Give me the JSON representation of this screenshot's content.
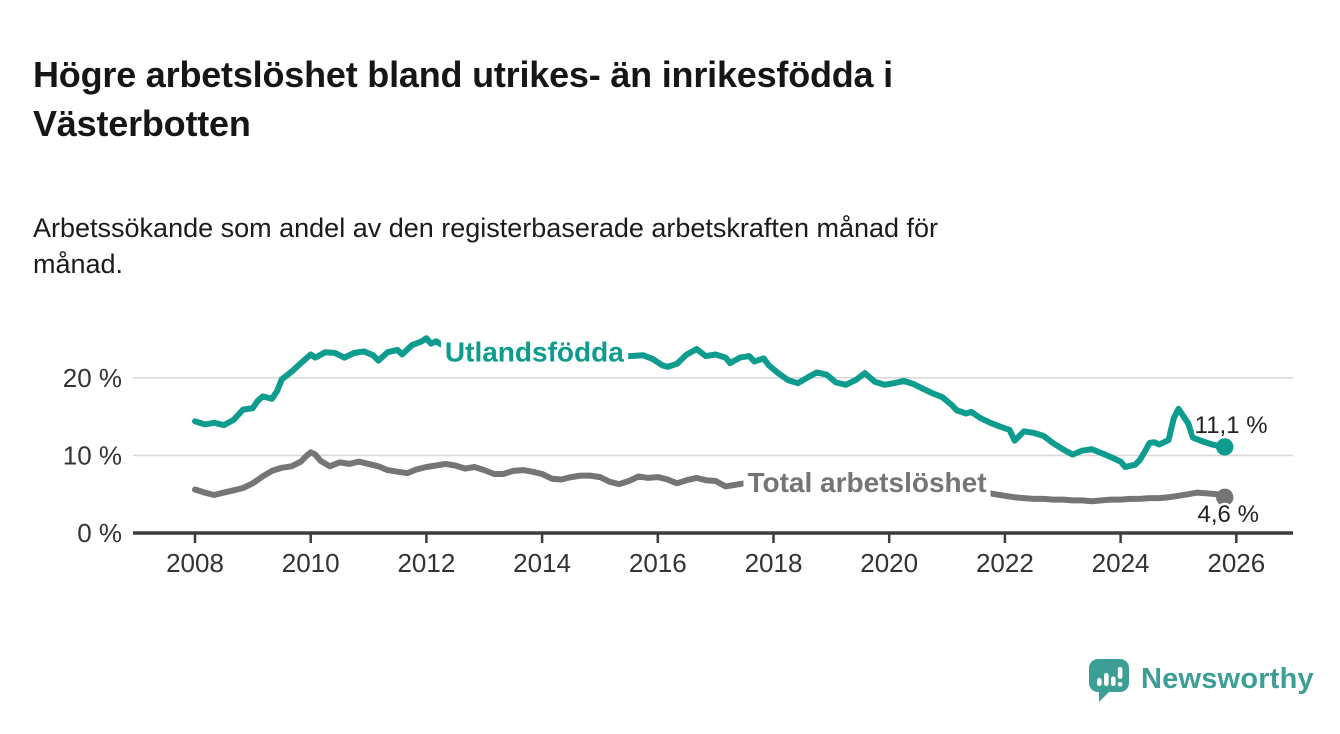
{
  "title": {
    "text": "Högre arbetslöshet bland utrikes- än inrikesfödda i Västerbotten",
    "lines": [
      "Högre arbetslöshet bland utrikes- än inrikesfödda i",
      "Västerbotten"
    ]
  },
  "subtitle": {
    "text": "Arbetssökande som andel av den registerbaserade arbetskraften månad för månad.",
    "lines": [
      "Arbetssökande som andel av den registerbaserade arbetskraften månad för",
      "månad."
    ]
  },
  "branding": {
    "logo_text": "Newsworthy",
    "logo_color": "#3D9E96"
  },
  "chart_data": {
    "type": "line",
    "title": "Högre arbetslöshet bland utrikes- än inrikesfödda i Västerbotten",
    "xlabel": "",
    "ylabel": "Arbetssökande som andel av den registerbaserade arbetskraften",
    "x_axis": {
      "ticks": [
        2008,
        2010,
        2012,
        2014,
        2016,
        2018,
        2020,
        2022,
        2024,
        2026
      ],
      "range": [
        2006.9,
        2027.0
      ],
      "grid": false
    },
    "y_axis": {
      "ticks": [
        {
          "value": 0,
          "label": "0 %"
        },
        {
          "value": 10,
          "label": "10 %"
        },
        {
          "value": 20,
          "label": "20 %"
        }
      ],
      "range": [
        0,
        27.5
      ],
      "grid": true
    },
    "colors": {
      "grid": "#d9d9d9",
      "axis": "#3d3d3d",
      "tick_text": "#333333",
      "annotation": "#222222"
    },
    "legend_position": "inline-labels",
    "series": [
      {
        "name": "Utlandsfödda",
        "color": "#0E9C8E",
        "label_at": [
          2012.32,
          23.4
        ],
        "end_label": "11,1 %",
        "end_label_at": [
          2025.28,
          12.9
        ],
        "end_value": 11.1,
        "points": [
          [
            2008.0,
            14.4
          ],
          [
            2008.17,
            14.0
          ],
          [
            2008.33,
            14.2
          ],
          [
            2008.5,
            13.9
          ],
          [
            2008.67,
            14.6
          ],
          [
            2008.83,
            15.9
          ],
          [
            2009.0,
            16.1
          ],
          [
            2009.08,
            17.0
          ],
          [
            2009.17,
            17.6
          ],
          [
            2009.33,
            17.3
          ],
          [
            2009.42,
            18.3
          ],
          [
            2009.5,
            19.8
          ],
          [
            2009.67,
            20.8
          ],
          [
            2009.83,
            21.9
          ],
          [
            2010.0,
            23.0
          ],
          [
            2010.08,
            22.6
          ],
          [
            2010.25,
            23.3
          ],
          [
            2010.42,
            23.2
          ],
          [
            2010.58,
            22.6
          ],
          [
            2010.75,
            23.2
          ],
          [
            2010.92,
            23.4
          ],
          [
            2011.08,
            22.9
          ],
          [
            2011.17,
            22.2
          ],
          [
            2011.33,
            23.3
          ],
          [
            2011.5,
            23.6
          ],
          [
            2011.58,
            23.0
          ],
          [
            2011.75,
            24.2
          ],
          [
            2011.92,
            24.7
          ],
          [
            2012.0,
            25.1
          ],
          [
            2012.08,
            24.4
          ],
          [
            2012.17,
            24.7
          ],
          [
            2012.25,
            24.3
          ],
          [
            2012.42,
            23.8
          ],
          [
            2012.58,
            23.9
          ],
          [
            2012.75,
            24.0
          ],
          [
            2013.0,
            23.6
          ],
          [
            2013.25,
            23.8
          ],
          [
            2013.5,
            23.3
          ],
          [
            2013.75,
            23.5
          ],
          [
            2014.0,
            23.2
          ],
          [
            2014.25,
            23.4
          ],
          [
            2014.5,
            22.9
          ],
          [
            2014.75,
            23.1
          ],
          [
            2015.0,
            22.9
          ],
          [
            2015.25,
            23.0
          ],
          [
            2015.5,
            22.8
          ],
          [
            2015.75,
            22.9
          ],
          [
            2015.92,
            22.4
          ],
          [
            2016.08,
            21.6
          ],
          [
            2016.17,
            21.4
          ],
          [
            2016.33,
            21.8
          ],
          [
            2016.5,
            23.0
          ],
          [
            2016.67,
            23.7
          ],
          [
            2016.83,
            22.8
          ],
          [
            2017.0,
            23.0
          ],
          [
            2017.17,
            22.6
          ],
          [
            2017.25,
            21.9
          ],
          [
            2017.42,
            22.6
          ],
          [
            2017.58,
            22.8
          ],
          [
            2017.67,
            22.1
          ],
          [
            2017.83,
            22.5
          ],
          [
            2017.92,
            21.6
          ],
          [
            2018.08,
            20.6
          ],
          [
            2018.25,
            19.7
          ],
          [
            2018.42,
            19.3
          ],
          [
            2018.58,
            20.0
          ],
          [
            2018.75,
            20.7
          ],
          [
            2018.92,
            20.4
          ],
          [
            2019.08,
            19.4
          ],
          [
            2019.25,
            19.1
          ],
          [
            2019.42,
            19.7
          ],
          [
            2019.58,
            20.6
          ],
          [
            2019.75,
            19.5
          ],
          [
            2019.92,
            19.1
          ],
          [
            2020.08,
            19.3
          ],
          [
            2020.25,
            19.6
          ],
          [
            2020.42,
            19.2
          ],
          [
            2020.58,
            18.6
          ],
          [
            2020.75,
            18.0
          ],
          [
            2020.92,
            17.5
          ],
          [
            2021.08,
            16.5
          ],
          [
            2021.17,
            15.8
          ],
          [
            2021.33,
            15.4
          ],
          [
            2021.42,
            15.6
          ],
          [
            2021.58,
            14.8
          ],
          [
            2021.75,
            14.2
          ],
          [
            2021.92,
            13.7
          ],
          [
            2022.08,
            13.3
          ],
          [
            2022.17,
            11.9
          ],
          [
            2022.33,
            13.1
          ],
          [
            2022.5,
            12.9
          ],
          [
            2022.67,
            12.5
          ],
          [
            2022.83,
            11.6
          ],
          [
            2023.0,
            10.8
          ],
          [
            2023.17,
            10.1
          ],
          [
            2023.33,
            10.6
          ],
          [
            2023.5,
            10.8
          ],
          [
            2023.67,
            10.3
          ],
          [
            2023.83,
            9.8
          ],
          [
            2024.0,
            9.2
          ],
          [
            2024.08,
            8.5
          ],
          [
            2024.25,
            8.8
          ],
          [
            2024.33,
            9.4
          ],
          [
            2024.42,
            10.5
          ],
          [
            2024.5,
            11.6
          ],
          [
            2024.58,
            11.7
          ],
          [
            2024.67,
            11.4
          ],
          [
            2024.83,
            12.0
          ],
          [
            2024.92,
            14.8
          ],
          [
            2025.0,
            16.0
          ],
          [
            2025.08,
            15.1
          ],
          [
            2025.17,
            14.1
          ],
          [
            2025.25,
            12.3
          ],
          [
            2025.42,
            11.8
          ],
          [
            2025.58,
            11.4
          ],
          [
            2025.8,
            11.1
          ]
        ]
      },
      {
        "name": "Total arbetslöshet",
        "color": "#757575",
        "label_at": [
          2017.55,
          6.6
        ],
        "end_label": "4,6 %",
        "end_label_at": [
          2025.33,
          1.4
        ],
        "end_value": 4.6,
        "points": [
          [
            2008.0,
            5.6
          ],
          [
            2008.17,
            5.2
          ],
          [
            2008.33,
            4.9
          ],
          [
            2008.5,
            5.2
          ],
          [
            2008.67,
            5.5
          ],
          [
            2008.83,
            5.8
          ],
          [
            2009.0,
            6.4
          ],
          [
            2009.17,
            7.3
          ],
          [
            2009.33,
            8.0
          ],
          [
            2009.5,
            8.4
          ],
          [
            2009.67,
            8.6
          ],
          [
            2009.83,
            9.2
          ],
          [
            2009.92,
            9.9
          ],
          [
            2010.0,
            10.4
          ],
          [
            2010.08,
            10.1
          ],
          [
            2010.17,
            9.3
          ],
          [
            2010.33,
            8.6
          ],
          [
            2010.5,
            9.1
          ],
          [
            2010.67,
            8.9
          ],
          [
            2010.83,
            9.2
          ],
          [
            2011.0,
            8.9
          ],
          [
            2011.17,
            8.6
          ],
          [
            2011.33,
            8.1
          ],
          [
            2011.5,
            7.9
          ],
          [
            2011.67,
            7.7
          ],
          [
            2011.83,
            8.2
          ],
          [
            2012.0,
            8.5
          ],
          [
            2012.17,
            8.7
          ],
          [
            2012.33,
            8.9
          ],
          [
            2012.5,
            8.7
          ],
          [
            2012.67,
            8.3
          ],
          [
            2012.83,
            8.5
          ],
          [
            2013.0,
            8.1
          ],
          [
            2013.17,
            7.6
          ],
          [
            2013.33,
            7.6
          ],
          [
            2013.5,
            8.0
          ],
          [
            2013.67,
            8.1
          ],
          [
            2013.83,
            7.9
          ],
          [
            2014.0,
            7.6
          ],
          [
            2014.17,
            7.0
          ],
          [
            2014.33,
            6.9
          ],
          [
            2014.5,
            7.2
          ],
          [
            2014.67,
            7.4
          ],
          [
            2014.83,
            7.4
          ],
          [
            2015.0,
            7.2
          ],
          [
            2015.17,
            6.6
          ],
          [
            2015.33,
            6.3
          ],
          [
            2015.5,
            6.7
          ],
          [
            2015.67,
            7.3
          ],
          [
            2015.83,
            7.1
          ],
          [
            2016.0,
            7.2
          ],
          [
            2016.17,
            6.9
          ],
          [
            2016.33,
            6.4
          ],
          [
            2016.5,
            6.8
          ],
          [
            2016.67,
            7.1
          ],
          [
            2016.83,
            6.8
          ],
          [
            2017.0,
            6.7
          ],
          [
            2017.17,
            6.0
          ],
          [
            2017.33,
            6.2
          ],
          [
            2017.5,
            6.4
          ],
          [
            2017.67,
            6.3
          ],
          [
            2017.83,
            6.1
          ],
          [
            2018.0,
            6.0
          ],
          [
            2018.25,
            5.8
          ],
          [
            2018.5,
            5.7
          ],
          [
            2018.75,
            5.8
          ],
          [
            2019.0,
            5.7
          ],
          [
            2019.25,
            5.6
          ],
          [
            2019.5,
            5.7
          ],
          [
            2019.75,
            5.8
          ],
          [
            2020.0,
            6.0
          ],
          [
            2020.25,
            6.9
          ],
          [
            2020.5,
            7.1
          ],
          [
            2020.75,
            6.7
          ],
          [
            2021.0,
            6.3
          ],
          [
            2021.25,
            5.8
          ],
          [
            2021.5,
            5.4
          ],
          [
            2021.75,
            5.1
          ],
          [
            2022.0,
            4.8
          ],
          [
            2022.17,
            4.6
          ],
          [
            2022.33,
            4.5
          ],
          [
            2022.5,
            4.4
          ],
          [
            2022.67,
            4.4
          ],
          [
            2022.83,
            4.3
          ],
          [
            2023.0,
            4.3
          ],
          [
            2023.17,
            4.2
          ],
          [
            2023.33,
            4.2
          ],
          [
            2023.5,
            4.1
          ],
          [
            2023.67,
            4.2
          ],
          [
            2023.83,
            4.3
          ],
          [
            2024.0,
            4.3
          ],
          [
            2024.17,
            4.4
          ],
          [
            2024.33,
            4.4
          ],
          [
            2024.5,
            4.5
          ],
          [
            2024.67,
            4.5
          ],
          [
            2024.83,
            4.6
          ],
          [
            2025.0,
            4.8
          ],
          [
            2025.17,
            5.0
          ],
          [
            2025.33,
            5.2
          ],
          [
            2025.5,
            5.1
          ],
          [
            2025.67,
            5.0
          ],
          [
            2025.8,
            4.6
          ]
        ]
      }
    ]
  }
}
